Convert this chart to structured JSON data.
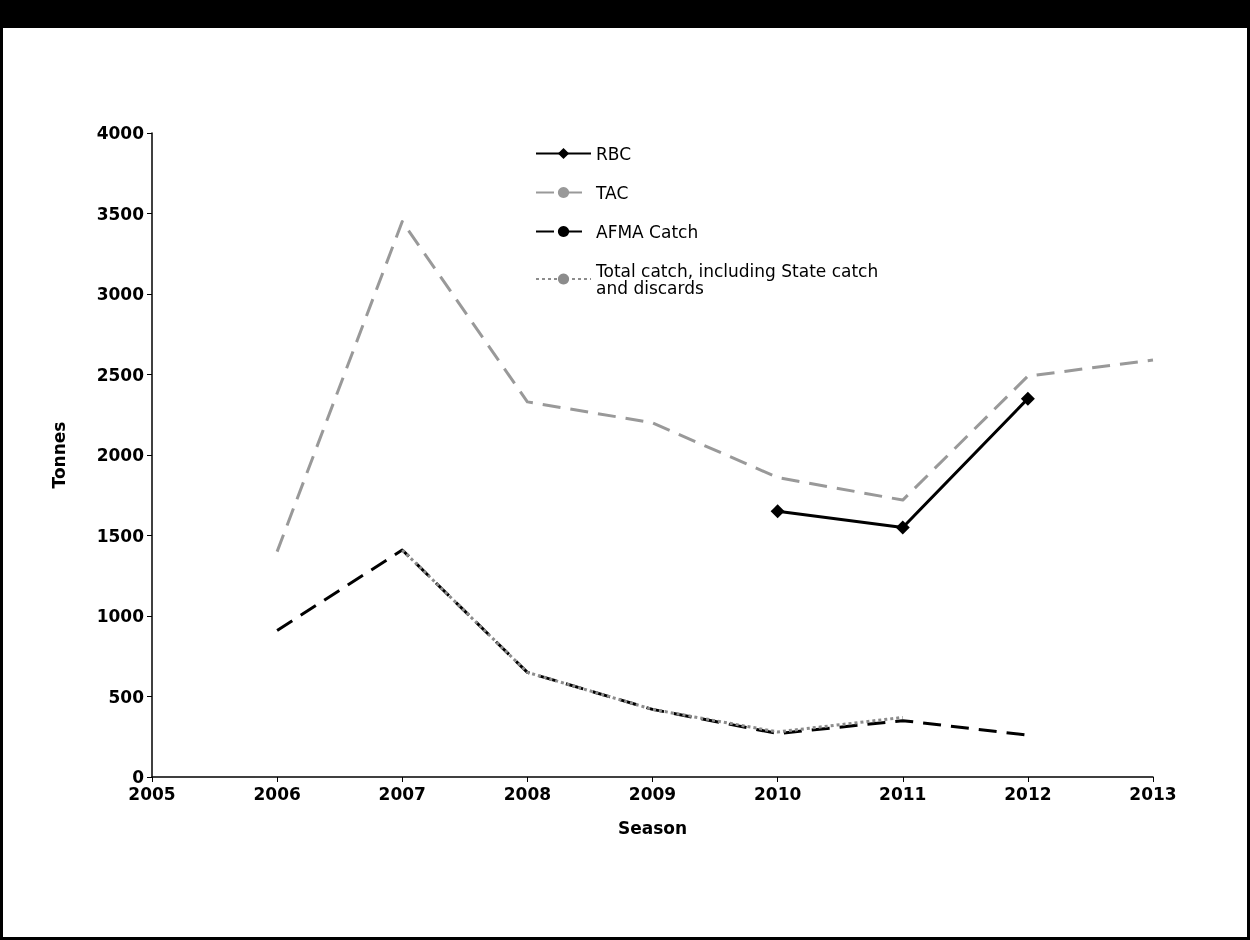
{
  "chart_data": {
    "type": "line",
    "xlabel": "Season",
    "ylabel": "Tonnes",
    "x": [
      2006,
      2007,
      2008,
      2009,
      2010,
      2011,
      2012,
      2013
    ],
    "xlim": [
      2005,
      2013
    ],
    "xticks": [
      2005,
      2006,
      2007,
      2008,
      2009,
      2010,
      2011,
      2012,
      2013
    ],
    "ylim": [
      0,
      4000
    ],
    "yticks": [
      0,
      500,
      1000,
      1500,
      2000,
      2500,
      3000,
      3500,
      4000
    ],
    "grid": false,
    "legend": "top",
    "series": [
      {
        "name": "RBC",
        "color": "#000000",
        "marker": "diamond",
        "line_style": "solid",
        "values": [
          null,
          null,
          null,
          null,
          1650,
          1550,
          2350,
          null
        ]
      },
      {
        "name": "TAC",
        "color": "#999999",
        "marker": "none",
        "line_style": "dashed",
        "values": [
          1400,
          3450,
          2330,
          2200,
          1860,
          1720,
          2490,
          2590
        ]
      },
      {
        "name": "AFMA Catch",
        "color": "#000000",
        "marker": "none",
        "line_style": "dashed",
        "values": [
          910,
          1410,
          650,
          420,
          270,
          350,
          260,
          null
        ]
      },
      {
        "name": "Total catch, including State catch and discards",
        "color": "#8c8c8c",
        "marker": "none",
        "line_style": "dotted",
        "x": [
          2007,
          2008,
          2009,
          2010,
          2011
        ],
        "values": [
          1410,
          650,
          420,
          280,
          370
        ]
      }
    ]
  }
}
